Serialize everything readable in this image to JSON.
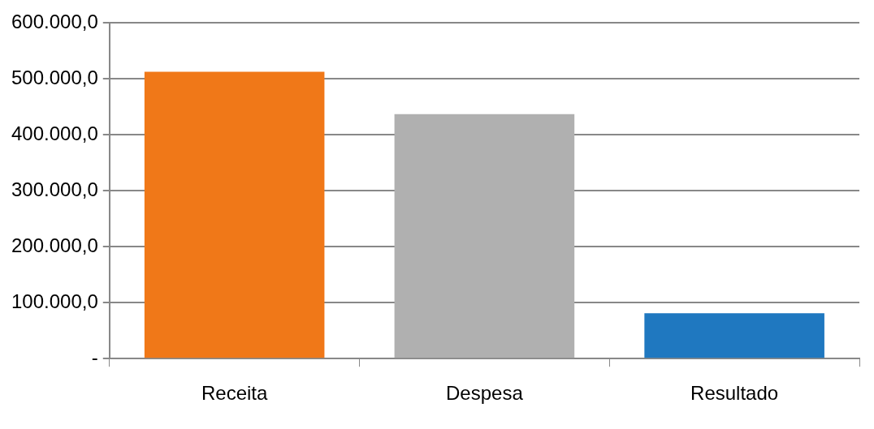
{
  "chart_data": {
    "type": "bar",
    "categories": [
      "Receita",
      "Despesa",
      "Resultado"
    ],
    "values": [
      513000,
      437000,
      81000
    ],
    "colors": [
      "#f07818",
      "#b0b0b0",
      "#1f78c0"
    ],
    "ylim": [
      0,
      600000
    ],
    "yticks": [
      {
        "value": 0,
        "label": "-"
      },
      {
        "value": 100000,
        "label": "100.000,0"
      },
      {
        "value": 200000,
        "label": "200.000,0"
      },
      {
        "value": 300000,
        "label": "300.000,0"
      },
      {
        "value": 400000,
        "label": "400.000,0"
      },
      {
        "value": 500000,
        "label": "500.000,0"
      },
      {
        "value": 600000,
        "label": "600.000,0"
      }
    ],
    "grid": "y",
    "legend": false
  }
}
